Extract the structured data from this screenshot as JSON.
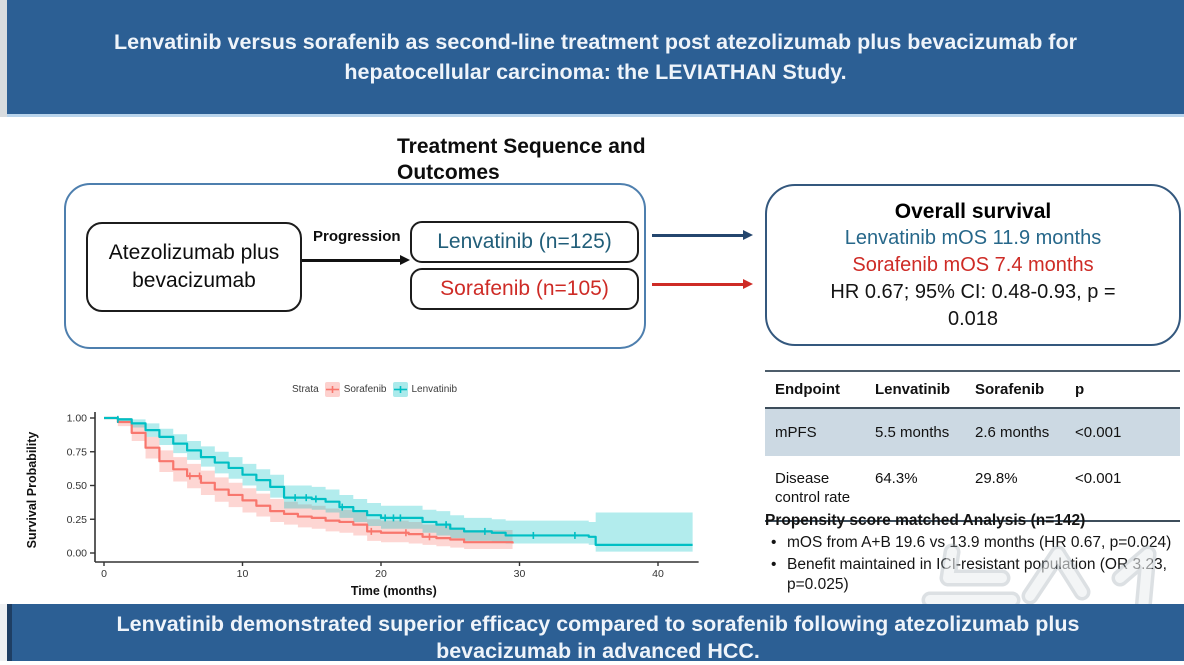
{
  "colors": {
    "banner_blue": "#2c5f94",
    "banner_edge": "#1e3e63",
    "lenvatinib_text": "#215e79",
    "sorafenib_text": "#ce2b26",
    "navy_arrow": "#24466e",
    "outer_border": "#4e7fae",
    "table_stripe": "#ccd9e3",
    "sorafenib_curve": "#F8766D",
    "lenvatinib_curve": "#00BFC4"
  },
  "header": {
    "line1": "Lenvatinib versus sorafenib as second-line treatment post atezolizumab plus bevacizumab for",
    "line2": "hepatocellular carcinoma: the LEVIATHAN Study."
  },
  "diagram": {
    "heading_line1": "Treatment Sequence and",
    "heading_line2": "Outcomes",
    "atezo_line1": "Atezolizumab plus",
    "atezo_line2": "bevacizumab",
    "progression_label": "Progression",
    "lenvatinib_box": "Lenvatinib (n=125)",
    "sorafenib_box": "Sorafenib (n=105)"
  },
  "overall_survival": {
    "title": "Overall survival",
    "lenvatinib_line": "Lenvatinib mOS 11.9 months",
    "sorafenib_line": "Sorafenib mOS 7.4 months",
    "hr_line1": "HR 0.67; 95% CI: 0.48-0.93, p =",
    "hr_line2": "0.018"
  },
  "results_table": {
    "headers": [
      "Endpoint",
      "Lenvatinib",
      "Sorafenib",
      "p"
    ],
    "rows": [
      [
        "mPFS",
        "5.5 months",
        "2.6 months",
        "<0.001"
      ],
      [
        "Disease control rate",
        "64.3%",
        "29.8%",
        "<0.001"
      ]
    ]
  },
  "propensity": {
    "title": "Propensity score matched Analysis (n=142)",
    "bullets": [
      "mOS from A+B 19.6 vs 13.9 months (HR 0.67, p=0.024)",
      "Benefit maintained in ICI-resistant population (OR 3.23, p=0.025)"
    ]
  },
  "footer": {
    "line1": "Lenvatinib demonstrated superior efficacy compared to sorafenib following atezolizumab plus",
    "line2": "bevacizumab in advanced HCC."
  },
  "watermark": {
    "text": "뉴스1"
  },
  "chart_data": {
    "type": "line",
    "subtype": "kaplan-meier-step",
    "title": "",
    "xlabel": "Time (months)",
    "ylabel": "Survival Probability",
    "xlim": [
      0,
      42.5
    ],
    "ylim": [
      0,
      1
    ],
    "xticks": [
      0,
      10,
      20,
      30,
      40
    ],
    "yticks": [
      0.0,
      0.25,
      0.5,
      0.75,
      1.0
    ],
    "grid": false,
    "legend_title": "Strata",
    "legend_position": "top",
    "series": [
      {
        "name": "Sorafenib",
        "color": "#F8766D",
        "median_months": 7.4,
        "points": [
          [
            0,
            1.0,
            1.0,
            1.0
          ],
          [
            1,
            0.97,
            0.94,
            1.0
          ],
          [
            2,
            0.89,
            0.83,
            0.95
          ],
          [
            3,
            0.78,
            0.7,
            0.86
          ],
          [
            4,
            0.68,
            0.6,
            0.76
          ],
          [
            5,
            0.62,
            0.53,
            0.71
          ],
          [
            6,
            0.57,
            0.48,
            0.66
          ],
          [
            7,
            0.52,
            0.43,
            0.61
          ],
          [
            8,
            0.47,
            0.38,
            0.56
          ],
          [
            9,
            0.43,
            0.34,
            0.52
          ],
          [
            10,
            0.39,
            0.3,
            0.48
          ],
          [
            11,
            0.35,
            0.27,
            0.44
          ],
          [
            12,
            0.31,
            0.23,
            0.4
          ],
          [
            13,
            0.29,
            0.21,
            0.38
          ],
          [
            14,
            0.27,
            0.19,
            0.36
          ],
          [
            15,
            0.26,
            0.18,
            0.35
          ],
          [
            16,
            0.24,
            0.16,
            0.33
          ],
          [
            17,
            0.23,
            0.15,
            0.32
          ],
          [
            18,
            0.21,
            0.13,
            0.3
          ],
          [
            19,
            0.16,
            0.09,
            0.25
          ],
          [
            20,
            0.15,
            0.08,
            0.24
          ],
          [
            22,
            0.14,
            0.07,
            0.23
          ],
          [
            23,
            0.12,
            0.06,
            0.21
          ],
          [
            24,
            0.11,
            0.05,
            0.2
          ],
          [
            25,
            0.1,
            0.04,
            0.19
          ],
          [
            26,
            0.08,
            0.03,
            0.17
          ],
          [
            29.5,
            0.07,
            0.02,
            0.16
          ]
        ],
        "censor_times": [
          6.2,
          6.9,
          19.3,
          21.8,
          23.5
        ]
      },
      {
        "name": "Lenvatinib",
        "color": "#00BFC4",
        "median_months": 11.9,
        "points": [
          [
            0,
            1.0,
            1.0,
            1.0
          ],
          [
            1,
            0.99,
            0.97,
            1.0
          ],
          [
            2,
            0.96,
            0.93,
            0.99
          ],
          [
            3,
            0.91,
            0.86,
            0.96
          ],
          [
            4,
            0.86,
            0.8,
            0.92
          ],
          [
            5,
            0.81,
            0.74,
            0.88
          ],
          [
            6,
            0.76,
            0.69,
            0.83
          ],
          [
            7,
            0.71,
            0.64,
            0.79
          ],
          [
            8,
            0.67,
            0.59,
            0.75
          ],
          [
            9,
            0.63,
            0.55,
            0.71
          ],
          [
            10,
            0.58,
            0.5,
            0.66
          ],
          [
            11,
            0.54,
            0.46,
            0.62
          ],
          [
            12,
            0.49,
            0.41,
            0.58
          ],
          [
            13,
            0.41,
            0.33,
            0.5
          ],
          [
            15,
            0.4,
            0.32,
            0.49
          ],
          [
            16,
            0.38,
            0.3,
            0.47
          ],
          [
            17,
            0.34,
            0.26,
            0.43
          ],
          [
            18,
            0.31,
            0.23,
            0.4
          ],
          [
            19,
            0.28,
            0.2,
            0.37
          ],
          [
            20,
            0.26,
            0.18,
            0.35
          ],
          [
            22,
            0.26,
            0.18,
            0.35
          ],
          [
            23,
            0.23,
            0.15,
            0.32
          ],
          [
            24,
            0.21,
            0.13,
            0.31
          ],
          [
            25,
            0.18,
            0.11,
            0.28
          ],
          [
            26,
            0.16,
            0.09,
            0.26
          ],
          [
            28,
            0.15,
            0.08,
            0.25
          ],
          [
            29,
            0.13,
            0.07,
            0.24
          ],
          [
            34,
            0.13,
            0.07,
            0.24
          ],
          [
            35,
            0.12,
            0.06,
            0.23
          ],
          [
            35.5,
            0.06,
            0.01,
            0.3
          ],
          [
            42.5,
            0.06,
            0.01,
            0.3
          ]
        ],
        "censor_times": [
          1.0,
          13.8,
          14.6,
          15.3,
          17.2,
          20.3,
          20.9,
          21.4,
          24.7,
          27.5,
          31.0,
          34.0
        ]
      }
    ]
  }
}
